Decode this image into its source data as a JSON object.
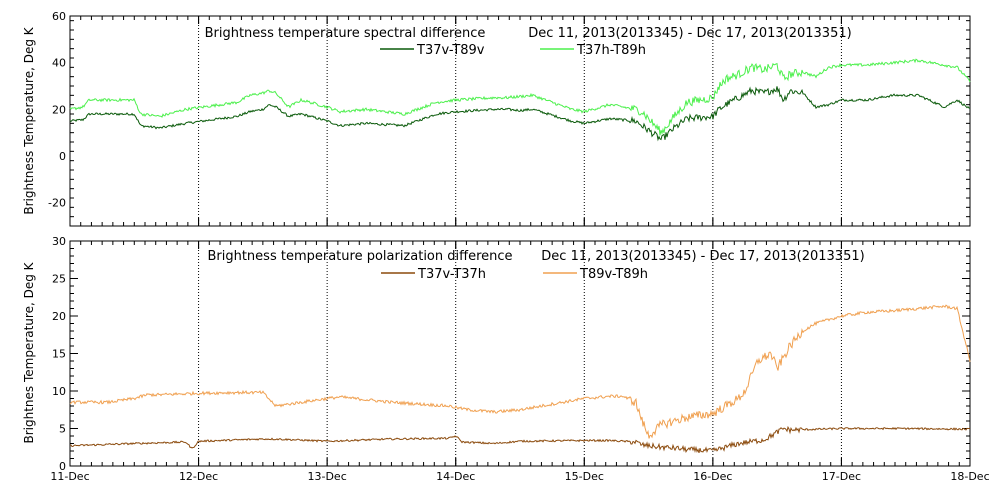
{
  "chart_data": [
    {
      "type": "line",
      "title": "Brightness temperature spectral difference",
      "date_range": "Dec 11, 2013(2013345)  -  Dec 17, 2013(2013351)",
      "ylabel": "Brightness Temperature, Deg K",
      "xlabel": "",
      "ylim": [
        -30,
        60
      ],
      "yticks": [
        -20,
        0,
        20,
        40,
        60
      ],
      "x_unit": "days since Dec 11, 2013 00:00",
      "xlim": [
        0,
        7
      ],
      "xticks": [
        0,
        1,
        2,
        3,
        4,
        5,
        6,
        7
      ],
      "xticklabels": [
        "11-Dec",
        "12-Dec",
        "13-Dec",
        "14-Dec",
        "15-Dec",
        "16-Dec",
        "17-Dec",
        "18-Dec"
      ],
      "grid": true,
      "legend_position": "top-center",
      "series": [
        {
          "name": "T37v-T89v",
          "color": "#0a5a0a",
          "noise": 0.5,
          "x": [
            0,
            0.1,
            0.15,
            0.5,
            0.55,
            0.7,
            0.9,
            1.3,
            1.4,
            1.5,
            1.55,
            1.6,
            1.7,
            1.8,
            2.0,
            2.1,
            2.3,
            2.6,
            2.85,
            3.0,
            3.3,
            3.4,
            3.5,
            3.6,
            3.9,
            4.0,
            4.2,
            4.4,
            4.45,
            4.5,
            4.6,
            4.7,
            4.8,
            5.0,
            5.05,
            5.1,
            5.2,
            5.3,
            5.4,
            5.5,
            5.55,
            5.6,
            5.7,
            5.8,
            5.9,
            6.0,
            6.2,
            6.4,
            6.6,
            6.8,
            6.9,
            7.0
          ],
          "values": [
            15,
            15.5,
            18,
            18,
            13,
            12,
            14,
            17,
            19,
            20,
            22,
            21,
            17,
            18,
            15,
            13,
            14,
            13,
            18,
            19,
            20,
            20,
            19.5,
            20,
            15,
            14,
            16,
            15,
            13,
            11,
            7,
            12,
            16,
            17,
            20,
            22,
            25,
            28,
            27,
            29,
            24,
            28,
            27,
            21,
            22,
            24,
            24,
            26,
            26,
            21,
            24,
            20
          ]
        },
        {
          "name": "T37h-T89h",
          "color": "#4cf04c",
          "noise": 0.6,
          "x": [
            0,
            0.1,
            0.15,
            0.5,
            0.55,
            0.7,
            0.9,
            1.3,
            1.4,
            1.5,
            1.55,
            1.6,
            1.7,
            1.8,
            2.0,
            2.1,
            2.3,
            2.6,
            2.85,
            3.0,
            3.3,
            3.4,
            3.5,
            3.6,
            3.9,
            4.0,
            4.2,
            4.4,
            4.45,
            4.5,
            4.6,
            4.7,
            4.8,
            5.0,
            5.05,
            5.1,
            5.2,
            5.3,
            5.4,
            5.5,
            5.55,
            5.6,
            5.7,
            5.8,
            5.9,
            6.0,
            6.2,
            6.4,
            6.6,
            6.8,
            6.9,
            7.0
          ],
          "values": [
            20,
            21,
            24,
            24,
            18,
            17,
            20,
            23,
            26,
            27,
            28,
            27,
            21,
            24,
            21,
            19,
            20,
            18,
            23,
            24,
            25,
            25,
            25.5,
            26,
            20,
            19,
            22,
            20,
            19,
            16,
            10,
            17,
            23,
            25,
            30,
            33,
            35,
            38,
            37,
            39,
            33,
            35,
            36,
            34,
            38,
            39,
            39,
            40,
            41,
            39,
            38,
            32
          ]
        }
      ]
    },
    {
      "type": "line",
      "title": "Brightness temperature polarization difference",
      "date_range": "Dec 11, 2013(2013345)  -  Dec 17, 2013(2013351)",
      "ylabel": "Brightnes Temperature, Deg K",
      "xlabel": "",
      "ylim": [
        0,
        30
      ],
      "yticks": [
        0,
        5,
        10,
        15,
        20,
        25,
        30
      ],
      "x_unit": "days since Dec 11, 2013 00:00",
      "xlim": [
        0,
        7
      ],
      "xticks": [
        0,
        1,
        2,
        3,
        4,
        5,
        6,
        7
      ],
      "xticklabels": [
        "11-Dec",
        "12-Dec",
        "13-Dec",
        "14-Dec",
        "15-Dec",
        "16-Dec",
        "17-Dec",
        "18-Dec"
      ],
      "grid": true,
      "legend_position": "top-center",
      "series": [
        {
          "name": "T37v-T37h",
          "color": "#8b4a0c",
          "noise": 0.12,
          "x": [
            0,
            0.5,
            0.9,
            0.95,
            1.0,
            1.5,
            1.6,
            2.0,
            2.5,
            2.95,
            3.0,
            3.05,
            3.3,
            3.5,
            4.0,
            4.2,
            4.4,
            4.45,
            4.6,
            4.7,
            4.8,
            5.0,
            5.1,
            5.2,
            5.4,
            5.5,
            5.55,
            5.6,
            6.0,
            6.5,
            7.0
          ],
          "values": [
            2.7,
            3.0,
            3.2,
            2.3,
            3.3,
            3.6,
            3.6,
            3.3,
            3.6,
            3.7,
            4.0,
            3.2,
            3.0,
            3.3,
            3.4,
            3.4,
            3.2,
            2.8,
            2.5,
            2.4,
            2.2,
            2.0,
            2.5,
            3.0,
            3.5,
            4.5,
            5.0,
            4.8,
            5.0,
            5.0,
            4.9
          ]
        },
        {
          "name": "T89v-T89h",
          "color": "#f0a050",
          "noise": 0.2,
          "x": [
            0,
            0.1,
            0.3,
            0.5,
            0.6,
            0.7,
            1.0,
            1.3,
            1.5,
            1.6,
            2.0,
            2.1,
            2.5,
            2.95,
            3.0,
            3.1,
            3.3,
            3.5,
            4.0,
            4.2,
            4.3,
            4.4,
            4.45,
            4.5,
            4.6,
            4.8,
            5.0,
            5.1,
            5.2,
            5.25,
            5.3,
            5.35,
            5.45,
            5.5,
            5.55,
            5.6,
            5.7,
            5.8,
            5.9,
            6.0,
            6.2,
            6.4,
            6.6,
            6.8,
            6.9,
            7.0
          ],
          "values": [
            8.5,
            8.5,
            8.5,
            9.0,
            9.5,
            9.5,
            9.7,
            9.8,
            9.8,
            8.0,
            9.0,
            9.2,
            8.5,
            8.0,
            7.8,
            7.5,
            7.2,
            7.5,
            9.0,
            9.3,
            9.3,
            8.5,
            6.0,
            4.0,
            5.5,
            6.5,
            7.0,
            8.0,
            9.0,
            10.0,
            12.0,
            14.0,
            15.0,
            13.0,
            14.5,
            16.0,
            18.0,
            19.0,
            19.5,
            20.0,
            20.5,
            20.7,
            21.0,
            21.3,
            21.0,
            14.0
          ]
        }
      ]
    }
  ]
}
